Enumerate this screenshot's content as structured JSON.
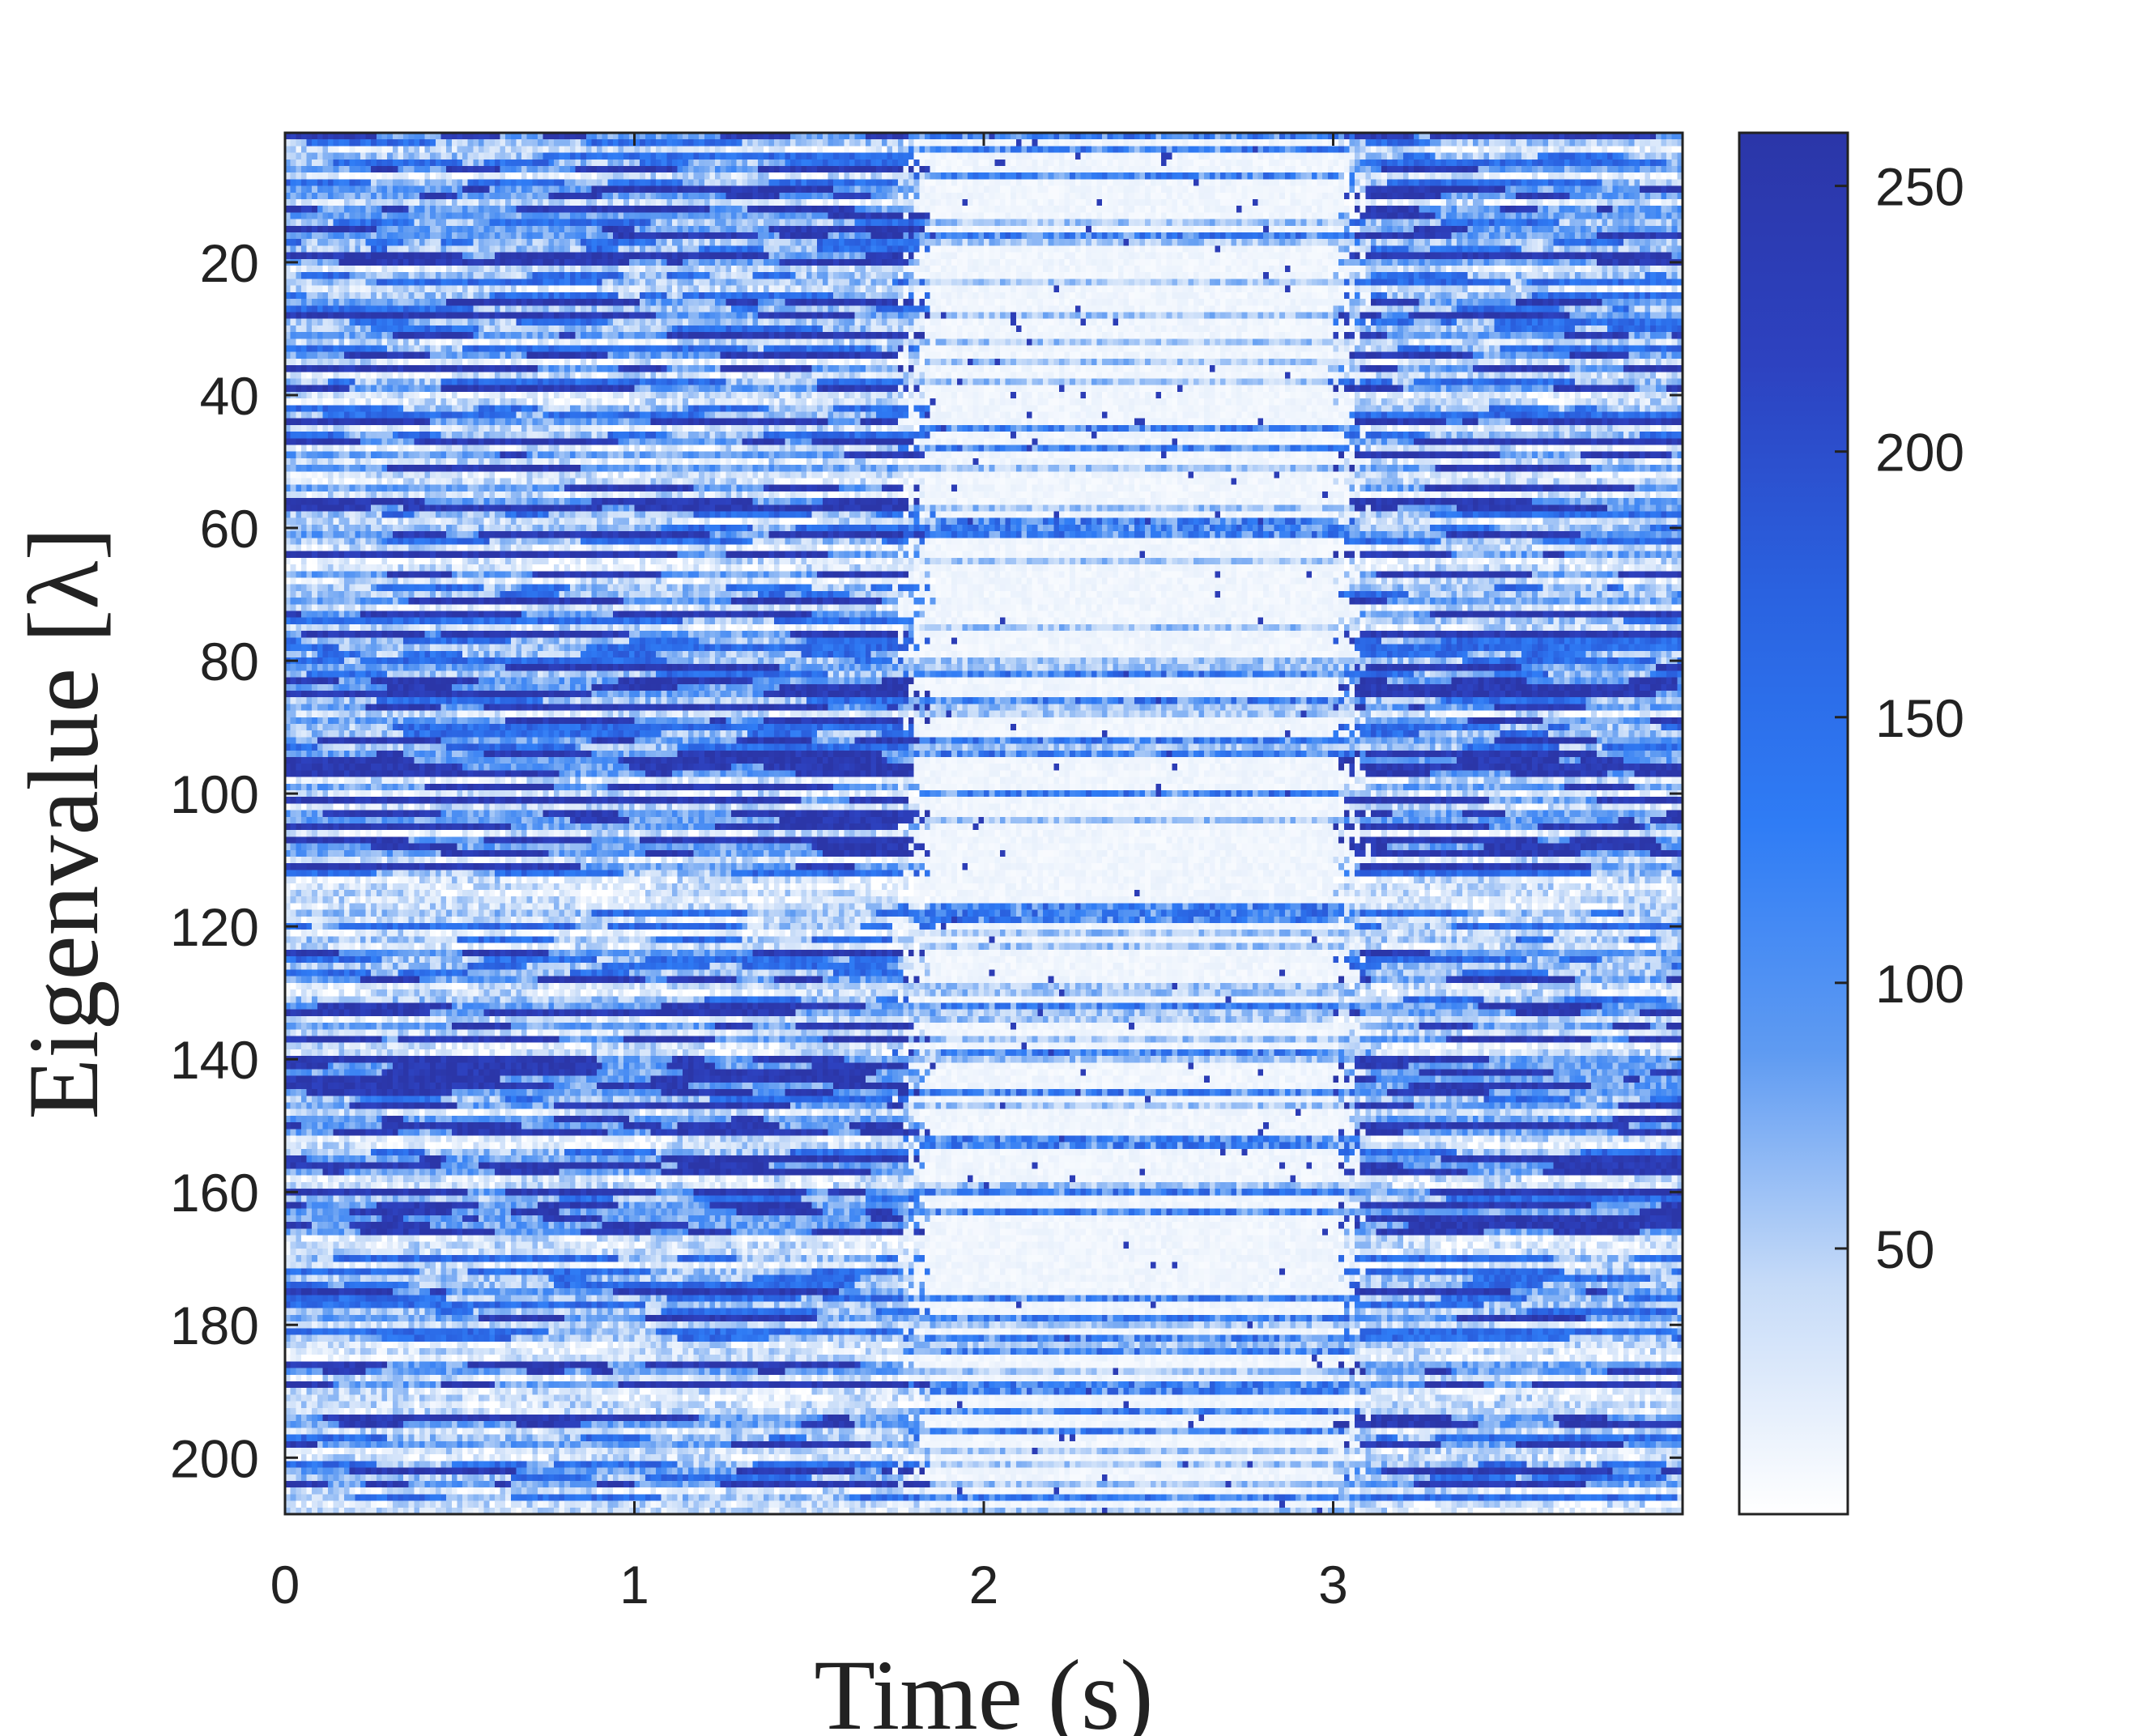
{
  "chart_data": {
    "type": "heatmap",
    "xlabel": "Time (s)",
    "ylabel": "Eigenvalue [λ]",
    "x_range": [
      0,
      4
    ],
    "y_range": [
      1,
      208
    ],
    "y_reversed": true,
    "xticks": [
      0,
      1,
      2,
      3
    ],
    "yticks": [
      20,
      40,
      60,
      80,
      100,
      120,
      140,
      160,
      180,
      200
    ],
    "colorbar": {
      "range": [
        0,
        260
      ],
      "ticks": [
        50,
        100,
        150,
        200,
        250
      ],
      "colormap": [
        "#ffffff",
        "#c6dbf8",
        "#5f9bf2",
        "#2f7cf5",
        "#2a62e0",
        "#2d42c0",
        "#2b36a8"
      ]
    },
    "value_structure": {
      "rows": 208,
      "columns": 260,
      "low_activity_window_s": [
        1.8,
        3.05
      ],
      "high_value_color": "#2b36a8",
      "low_value_color": "#ffffff"
    }
  }
}
